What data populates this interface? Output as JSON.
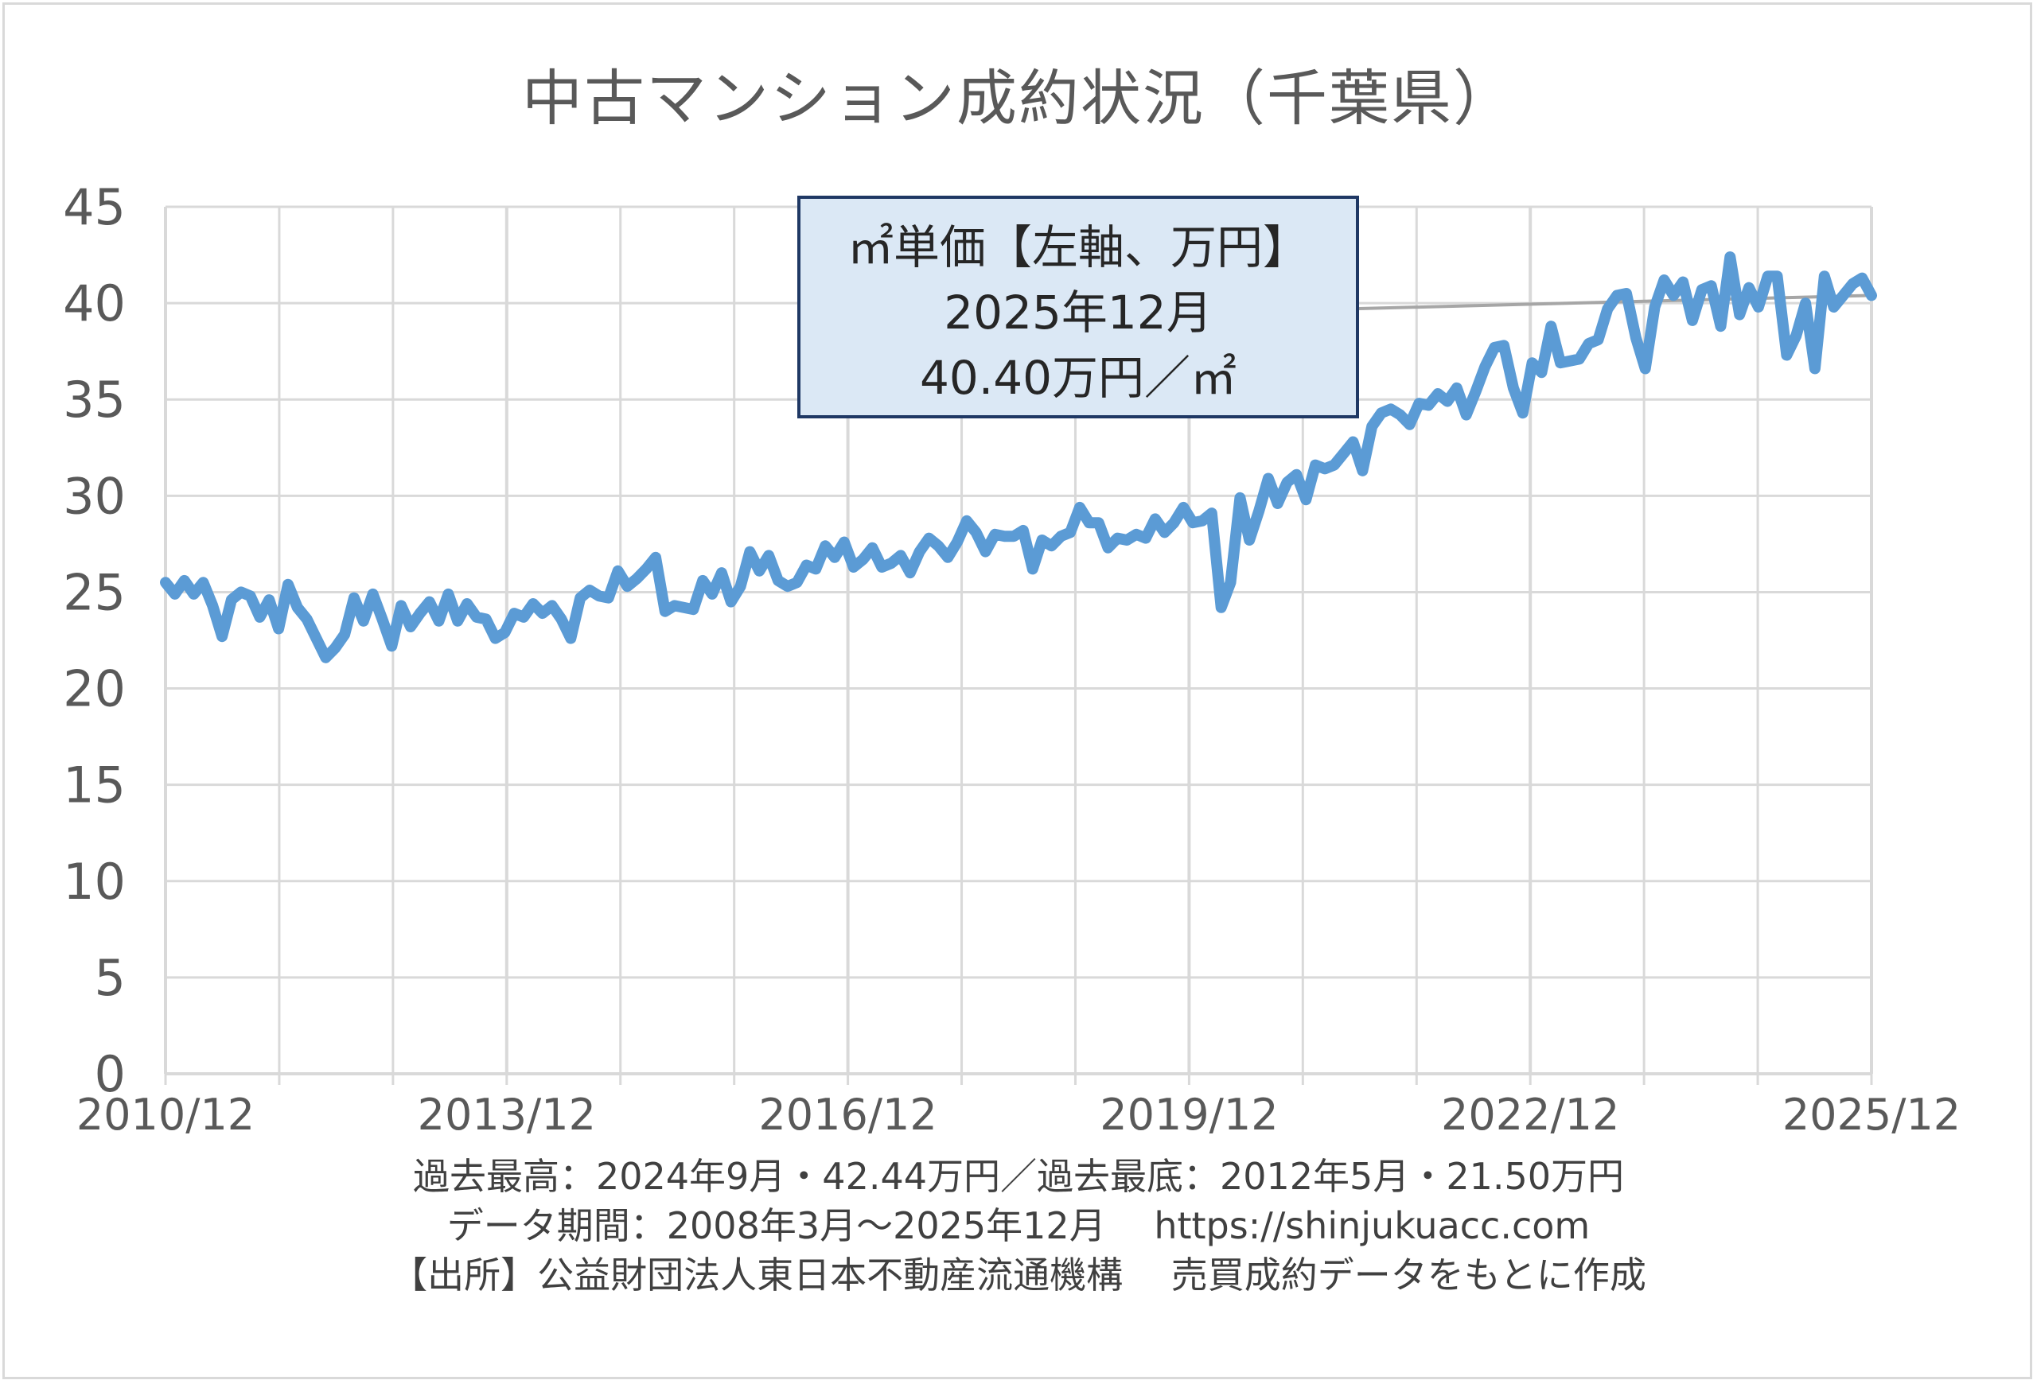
{
  "title": "中古マンション成約状況（千葉県）",
  "callout": {
    "line1": "㎡単価【左軸、万円】",
    "line2": "2025年12月",
    "line3": "40.40万円／㎡"
  },
  "notes": {
    "line1": "過去最高：2024年9月・42.44万円／過去最底：2012年5月・21.50万円",
    "line2": "データ期間：2008年3月～2025年12月　 https://shinjukuacc.com",
    "line3": "【出所】公益財団法人東日本不動産流通機構　 売買成約データをもとに作成"
  },
  "colors": {
    "series": "#5b9bd5",
    "grid": "#d9d9d9",
    "leader": "#a6a6a6",
    "callout_fill": "#dbe8f5",
    "callout_border": "#1f3864"
  },
  "chart_data": {
    "type": "line",
    "title": "中古マンション成約状況（千葉県）",
    "ylim": [
      0,
      45
    ],
    "yticks": [
      "0",
      "5",
      "10",
      "15",
      "20",
      "25",
      "30",
      "35",
      "40",
      "45"
    ],
    "xticks": [
      "2010/12",
      "2013/12",
      "2016/12",
      "2019/12",
      "2022/12",
      "2025/12"
    ],
    "x_start": "2010/12",
    "x_end": "2025/12",
    "grid": true,
    "legend": "none",
    "series": [
      {
        "values": [
          25.5,
          24.9,
          25.6,
          24.9,
          25.5,
          24.3,
          22.7,
          24.6,
          25.0,
          24.8,
          23.7,
          24.6,
          23.1,
          25.4,
          24.2,
          23.6,
          22.6,
          21.6,
          22.1,
          22.8,
          24.7,
          23.5,
          24.9,
          23.6,
          22.2,
          24.3,
          23.2,
          23.9,
          24.5,
          23.5,
          24.9,
          23.5,
          24.4,
          23.7,
          23.6,
          22.6,
          22.9,
          23.9,
          23.7,
          24.4,
          23.9,
          24.3,
          23.6,
          22.6,
          24.7,
          25.1,
          24.8,
          24.7,
          26.1,
          25.3,
          25.7,
          26.2,
          26.8,
          24.0,
          24.3,
          24.2,
          24.1,
          25.6,
          24.9,
          26.0,
          24.5,
          25.3,
          27.1,
          26.1,
          26.9,
          25.6,
          25.3,
          25.5,
          26.4,
          26.2,
          27.4,
          26.8,
          27.6,
          26.3,
          26.7,
          27.3,
          26.3,
          26.5,
          26.9,
          26.0,
          27.1,
          27.8,
          27.4,
          26.8,
          27.6,
          28.7,
          28.1,
          27.1,
          28.0,
          27.9,
          27.9,
          28.2,
          26.2,
          27.7,
          27.4,
          27.9,
          28.1,
          29.4,
          28.6,
          28.6,
          27.3,
          27.8,
          27.7,
          28.0,
          27.8,
          28.8,
          28.1,
          28.6,
          29.4,
          28.6,
          28.7,
          29.1,
          24.2,
          25.5,
          29.9,
          27.7,
          29.2,
          30.9,
          29.6,
          30.7,
          31.1,
          29.8,
          31.6,
          31.4,
          31.6,
          32.2,
          32.8,
          31.3,
          33.6,
          34.3,
          34.5,
          34.2,
          33.7,
          34.8,
          34.7,
          35.3,
          34.9,
          35.6,
          34.2,
          35.4,
          36.7,
          37.7,
          37.8,
          35.6,
          34.3,
          36.9,
          36.4,
          38.8,
          36.9,
          37.0,
          37.1,
          37.9,
          38.1,
          39.7,
          40.4,
          40.5,
          38.2,
          36.6,
          39.8,
          41.2,
          40.4,
          41.1,
          39.1,
          40.7,
          40.9,
          38.8,
          42.4,
          39.4,
          40.8,
          39.8,
          41.4,
          41.4,
          37.3,
          38.3,
          40.0,
          36.6,
          41.4,
          39.8,
          40.4,
          41.0,
          41.3,
          40.4
        ]
      }
    ],
    "annotation": {
      "label": "2025年12月",
      "value": 40.4,
      "unit": "万円／㎡"
    }
  }
}
